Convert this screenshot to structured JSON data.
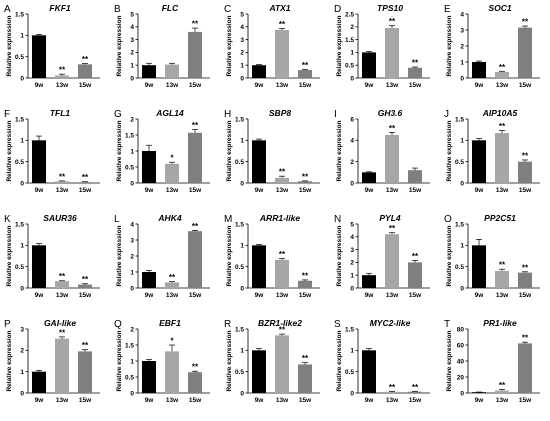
{
  "figure": {
    "ylabel": "Relative expression",
    "categories": [
      "9w",
      "13w",
      "15w"
    ],
    "colors": [
      "#000000",
      "#a6a6a6",
      "#7f7f7f"
    ]
  },
  "chart_data": [
    {
      "panel": "A",
      "title": "FKF1",
      "type": "bar",
      "ylim": [
        0,
        1.5
      ],
      "ticks": [
        0,
        0.5,
        1,
        1.5
      ],
      "ticklabels": [
        "0",
        "0.5",
        "1",
        "1.5"
      ],
      "values": [
        1.0,
        0.06,
        0.32
      ],
      "errors": [
        0.02,
        0.03,
        0.02
      ],
      "sig": [
        "",
        "**",
        "**"
      ]
    },
    {
      "panel": "B",
      "title": "FLC",
      "type": "bar",
      "ylim": [
        0,
        5
      ],
      "ticks": [
        0,
        1,
        2,
        3,
        4,
        5
      ],
      "ticklabels": [
        "0",
        "1",
        "2",
        "3",
        "4",
        "5"
      ],
      "values": [
        1.0,
        1.05,
        3.6
      ],
      "errors": [
        0.15,
        0.1,
        0.3
      ],
      "sig": [
        "",
        "",
        "**"
      ]
    },
    {
      "panel": "C",
      "title": "ATX1",
      "type": "bar",
      "ylim": [
        0,
        5
      ],
      "ticks": [
        0,
        1,
        2,
        3,
        4,
        5
      ],
      "ticklabels": [
        "0",
        "1",
        "2",
        "3",
        "4",
        "5"
      ],
      "values": [
        1.0,
        3.75,
        0.62
      ],
      "errors": [
        0.05,
        0.12,
        0.05
      ],
      "sig": [
        "",
        "**",
        "**"
      ]
    },
    {
      "panel": "D",
      "title": "TPS10",
      "type": "bar",
      "ylim": [
        0,
        2.5
      ],
      "ticks": [
        0,
        0.5,
        1,
        1.5,
        2,
        2.5
      ],
      "ticklabels": [
        "0",
        "0.5",
        "1",
        "1.5",
        "2",
        "2.5"
      ],
      "values": [
        1.0,
        1.95,
        0.4
      ],
      "errors": [
        0.03,
        0.1,
        0.03
      ],
      "sig": [
        "",
        "**",
        "**"
      ]
    },
    {
      "panel": "E",
      "title": "SOC1",
      "type": "bar",
      "ylim": [
        0,
        4
      ],
      "ticks": [
        0,
        1,
        2,
        3,
        4
      ],
      "ticklabels": [
        "0",
        "1",
        "2",
        "3",
        "4"
      ],
      "values": [
        1.0,
        0.38,
        3.15
      ],
      "errors": [
        0.06,
        0.04,
        0.1
      ],
      "sig": [
        "",
        "**",
        "**"
      ]
    },
    {
      "panel": "F",
      "title": "TFL1",
      "type": "bar",
      "ylim": [
        0,
        1.5
      ],
      "ticks": [
        0,
        0.5,
        1,
        1.5
      ],
      "ticklabels": [
        "0",
        "0.5",
        "1",
        "1.5"
      ],
      "values": [
        1.0,
        0.04,
        0.02
      ],
      "errors": [
        0.1,
        0.01,
        0.01
      ],
      "sig": [
        "",
        "**",
        "**"
      ]
    },
    {
      "panel": "G",
      "title": "AGL14",
      "type": "bar",
      "ylim": [
        0,
        2
      ],
      "ticks": [
        0,
        0.5,
        1,
        1.5,
        2
      ],
      "ticklabels": [
        "0",
        "0.5",
        "1",
        "1.5",
        "2"
      ],
      "values": [
        1.0,
        0.6,
        1.57
      ],
      "errors": [
        0.18,
        0.05,
        0.1
      ],
      "sig": [
        "",
        "*",
        "**"
      ]
    },
    {
      "panel": "H",
      "title": "SBP8",
      "type": "bar",
      "ylim": [
        0,
        1.5
      ],
      "ticks": [
        0,
        0.5,
        1,
        1.5
      ],
      "ticklabels": [
        "0",
        "0.5",
        "1",
        "1.5"
      ],
      "values": [
        1.0,
        0.12,
        0.04
      ],
      "errors": [
        0.03,
        0.04,
        0.01
      ],
      "sig": [
        "",
        "**",
        "**"
      ]
    },
    {
      "panel": "I",
      "title": "GH3.6",
      "type": "bar",
      "ylim": [
        0,
        6
      ],
      "ticks": [
        0,
        2,
        4,
        6
      ],
      "ticklabels": [
        "0",
        "2",
        "4",
        "6"
      ],
      "values": [
        1.0,
        4.5,
        1.2
      ],
      "errors": [
        0.05,
        0.25,
        0.2
      ],
      "sig": [
        "",
        "**",
        ""
      ]
    },
    {
      "panel": "J",
      "title": "AIP10A5",
      "type": "bar",
      "ylim": [
        0,
        1.5
      ],
      "ticks": [
        0,
        0.5,
        1,
        1.5
      ],
      "ticklabels": [
        "0",
        "0.5",
        "1",
        "1.5"
      ],
      "values": [
        1.0,
        1.17,
        0.5
      ],
      "errors": [
        0.04,
        0.06,
        0.04
      ],
      "sig": [
        "",
        "**",
        "**"
      ]
    },
    {
      "panel": "K",
      "title": "SAUR36",
      "type": "bar",
      "ylim": [
        0,
        1.5
      ],
      "ticks": [
        0,
        0.5,
        1,
        1.5
      ],
      "ticklabels": [
        "0",
        "0.5",
        "1",
        "1.5"
      ],
      "values": [
        1.0,
        0.16,
        0.08
      ],
      "errors": [
        0.04,
        0.01,
        0.02
      ],
      "sig": [
        "",
        "**",
        "**"
      ]
    },
    {
      "panel": "L",
      "title": "AHK4",
      "type": "bar",
      "ylim": [
        0,
        4
      ],
      "ticks": [
        0,
        1,
        2,
        3,
        4
      ],
      "ticklabels": [
        "0",
        "1",
        "2",
        "3",
        "4"
      ],
      "values": [
        1.0,
        0.35,
        3.55
      ],
      "errors": [
        0.1,
        0.05,
        0.05
      ],
      "sig": [
        "",
        "**",
        "**"
      ]
    },
    {
      "panel": "M",
      "title": "ARR1-like",
      "type": "bar",
      "ylim": [
        0,
        1.5
      ],
      "ticks": [
        0,
        0.5,
        1,
        1.5
      ],
      "ticklabels": [
        "0",
        "0.5",
        "1",
        "1.5"
      ],
      "values": [
        1.0,
        0.66,
        0.17
      ],
      "errors": [
        0.02,
        0.03,
        0.02
      ],
      "sig": [
        "",
        "**",
        "**"
      ]
    },
    {
      "panel": "N",
      "title": "PYL4",
      "type": "bar",
      "ylim": [
        0,
        5
      ],
      "ticks": [
        0,
        1,
        2,
        3,
        4,
        5
      ],
      "ticklabels": [
        "0",
        "1",
        "2",
        "3",
        "4",
        "5"
      ],
      "values": [
        1.0,
        4.2,
        2.0
      ],
      "errors": [
        0.15,
        0.12,
        0.15
      ],
      "sig": [
        "",
        "**",
        "**"
      ]
    },
    {
      "panel": "O",
      "title": "PP2C51",
      "type": "bar",
      "ylim": [
        0,
        1.5
      ],
      "ticks": [
        0,
        0.5,
        1,
        1.5
      ],
      "ticklabels": [
        "0",
        "0.5",
        "1",
        "1.5"
      ],
      "values": [
        1.0,
        0.4,
        0.36
      ],
      "errors": [
        0.14,
        0.04,
        0.02
      ],
      "sig": [
        "",
        "**",
        "**"
      ]
    },
    {
      "panel": "P",
      "title": "GAI-like",
      "type": "bar",
      "ylim": [
        0,
        3
      ],
      "ticks": [
        0,
        1,
        2,
        3
      ],
      "ticklabels": [
        "0",
        "1",
        "2",
        "3"
      ],
      "values": [
        1.0,
        2.55,
        1.95
      ],
      "errors": [
        0.06,
        0.08,
        0.08
      ],
      "sig": [
        "",
        "**",
        "**"
      ]
    },
    {
      "panel": "Q",
      "title": "EBF1",
      "type": "bar",
      "ylim": [
        0,
        2
      ],
      "ticks": [
        0,
        0.5,
        1,
        1.5,
        2
      ],
      "ticklabels": [
        "0",
        "0.5",
        "1",
        "1.5",
        "2"
      ],
      "values": [
        1.0,
        1.3,
        0.65
      ],
      "errors": [
        0.05,
        0.2,
        0.03
      ],
      "sig": [
        "",
        "*",
        "**"
      ]
    },
    {
      "panel": "R",
      "title": "BZR1-like2",
      "type": "bar",
      "ylim": [
        0,
        1.5
      ],
      "ticks": [
        0,
        0.5,
        1,
        1.5
      ],
      "ticklabels": [
        "0",
        "0.5",
        "1",
        "1.5"
      ],
      "values": [
        1.0,
        1.35,
        0.67
      ],
      "errors": [
        0.04,
        0.03,
        0.04
      ],
      "sig": [
        "",
        "**",
        "**"
      ]
    },
    {
      "panel": "S",
      "title": "MYC2-like",
      "type": "bar",
      "ylim": [
        0,
        1.5
      ],
      "ticks": [
        0,
        0.5,
        1,
        1.5
      ],
      "ticklabels": [
        "0",
        "0.5",
        "1",
        "1.5"
      ],
      "values": [
        1.0,
        0.03,
        0.03
      ],
      "errors": [
        0.04,
        0.01,
        0.01
      ],
      "sig": [
        "",
        "**",
        "**"
      ]
    },
    {
      "panel": "T",
      "title": "PR1-like",
      "type": "bar",
      "ylim": [
        0,
        80
      ],
      "ticks": [
        0,
        20,
        40,
        60,
        80
      ],
      "ticklabels": [
        "0",
        "20",
        "40",
        "60",
        "80"
      ],
      "values": [
        1.0,
        3.0,
        62.0
      ],
      "errors": [
        0.2,
        1.5,
        1.5
      ],
      "sig": [
        "",
        "**",
        "**"
      ]
    }
  ]
}
